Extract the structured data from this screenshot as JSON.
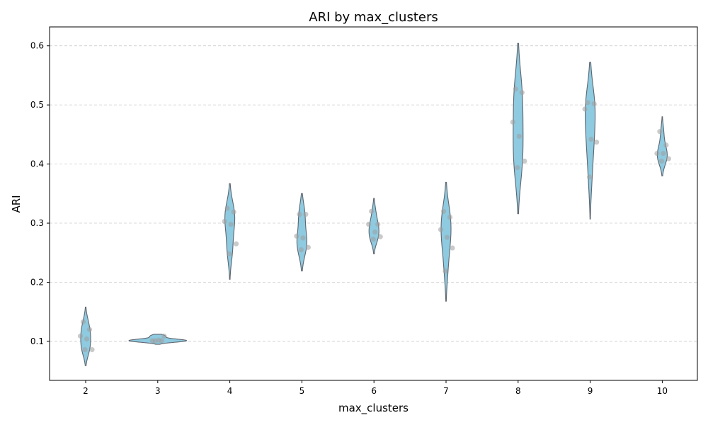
{
  "chart_data": {
    "type": "violin",
    "title": "ARI by max_clusters",
    "xlabel": "max_clusters",
    "ylabel": "ARI",
    "ylim": [
      0.034,
      0.632
    ],
    "yticks": [
      "0.1",
      "0.2",
      "0.3",
      "0.4",
      "0.5",
      "0.6"
    ],
    "grid": "y-dashed",
    "violin_color": "#8ecae0",
    "violin_edge_color": "#5f6670",
    "point_color": "#9e9e9e",
    "categories": [
      "2",
      "3",
      "4",
      "5",
      "6",
      "7",
      "8",
      "9",
      "10"
    ],
    "groups": [
      {
        "category": "2",
        "points": [
          0.133,
          0.12,
          0.109,
          0.104,
          0.086,
          0.086
        ],
        "kde_min": 0.059,
        "kde_max": 0.158,
        "mode": 0.105
      },
      {
        "category": "3",
        "points": [
          0.101,
          0.101,
          0.101,
          0.102,
          0.109
        ],
        "kde_min": 0.095,
        "kde_max": 0.112,
        "mode": 0.101
      },
      {
        "category": "4",
        "points": [
          0.325,
          0.319,
          0.303,
          0.298,
          0.265,
          0.248
        ],
        "kde_min": 0.205,
        "kde_max": 0.367,
        "mode": 0.305
      },
      {
        "category": "5",
        "points": [
          0.315,
          0.315,
          0.278,
          0.275,
          0.259,
          0.255
        ],
        "kde_min": 0.219,
        "kde_max": 0.35,
        "mode": 0.283
      },
      {
        "category": "6",
        "points": [
          0.32,
          0.298,
          0.298,
          0.285,
          0.277,
          0.273
        ],
        "kde_min": 0.248,
        "kde_max": 0.342,
        "mode": 0.29
      },
      {
        "category": "7",
        "points": [
          0.32,
          0.31,
          0.289,
          0.276,
          0.258,
          0.219
        ],
        "kde_min": 0.168,
        "kde_max": 0.369,
        "mode": 0.29
      },
      {
        "category": "8",
        "points": [
          0.527,
          0.521,
          0.471,
          0.447,
          0.405,
          0.394
        ],
        "kde_min": 0.316,
        "kde_max": 0.604,
        "mode": 0.47
      },
      {
        "category": "9",
        "points": [
          0.504,
          0.502,
          0.493,
          0.442,
          0.437,
          0.378
        ],
        "kde_min": 0.307,
        "kde_max": 0.572,
        "mode": 0.46
      },
      {
        "category": "10",
        "points": [
          0.455,
          0.432,
          0.418,
          0.418,
          0.409,
          0.405
        ],
        "kde_min": 0.38,
        "kde_max": 0.48,
        "mode": 0.42
      }
    ]
  }
}
